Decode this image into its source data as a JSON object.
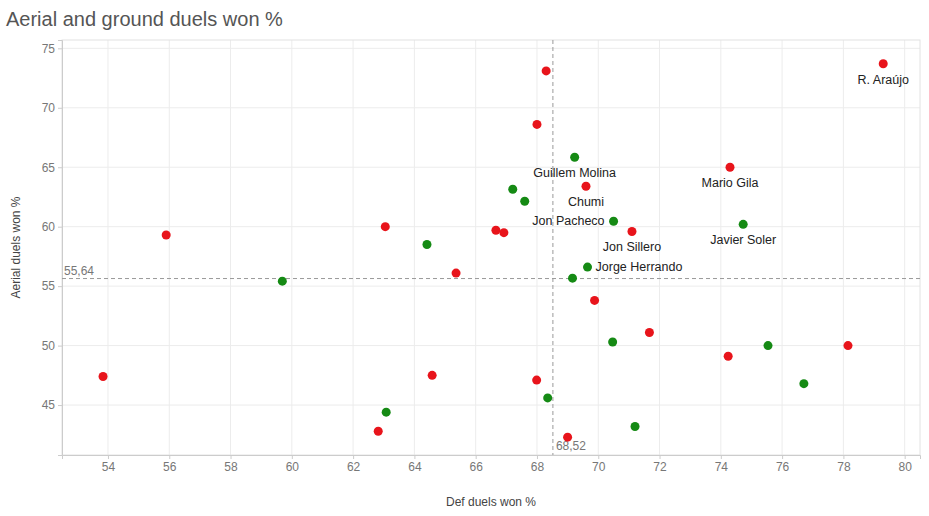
{
  "chart_data": {
    "type": "scatter",
    "title": "Aerial and ground duels won %",
    "x_label": "Def duels won %",
    "y_label": "Aerial duels won %",
    "xlim": [
      52.5,
      80.5
    ],
    "ylim": [
      40.8,
      75.7
    ],
    "xticks": [
      54,
      56,
      58,
      60,
      62,
      64,
      66,
      68,
      70,
      72,
      74,
      76,
      78,
      80
    ],
    "yticks": [
      45,
      50,
      55,
      60,
      65,
      70,
      75
    ],
    "grid": true,
    "marker": "circle",
    "annotations": [
      {
        "axis": "x",
        "value": 68.52,
        "label": "68,52"
      },
      {
        "axis": "y",
        "value": 55.64,
        "label": "55,64"
      }
    ],
    "series": [
      {
        "color": "#e8141b",
        "x": [
          79.3,
          68.3,
          68.0,
          74.3,
          69.6,
          55.9,
          63.05,
          66.66,
          66.92,
          71.1,
          65.36,
          69.88,
          71.67,
          74.24,
          78.15,
          53.84,
          64.58,
          67.99,
          62.82,
          69.0
        ],
        "values": [
          73.7,
          73.1,
          68.6,
          65.0,
          63.4,
          59.3,
          60.0,
          59.7,
          59.5,
          59.6,
          56.1,
          53.8,
          51.1,
          49.1,
          50.0,
          47.4,
          47.5,
          47.1,
          42.8,
          42.3
        ],
        "labels": [
          "R. Araújo",
          null,
          null,
          "Mario Gila",
          "Chumi",
          null,
          null,
          null,
          null,
          "Jon Sillero",
          null,
          null,
          null,
          null,
          null,
          null,
          null,
          null,
          null,
          null
        ]
      },
      {
        "color": "#158a14",
        "x": [
          69.23,
          67.21,
          67.6,
          70.5,
          74.73,
          64.41,
          69.65,
          69.16,
          59.69,
          70.47,
          75.54,
          76.71,
          63.08,
          68.35,
          71.2
        ],
        "values": [
          65.84,
          63.15,
          62.14,
          60.46,
          60.2,
          58.5,
          56.6,
          55.67,
          55.42,
          50.3,
          50.0,
          46.8,
          44.4,
          45.6,
          43.2
        ],
        "labels": [
          "Guillem Molina",
          null,
          null,
          "Jon Pacheco",
          "Javier Soler",
          null,
          "Jorge Herrando",
          null,
          null,
          null,
          null,
          null,
          null,
          null,
          null
        ]
      }
    ]
  }
}
